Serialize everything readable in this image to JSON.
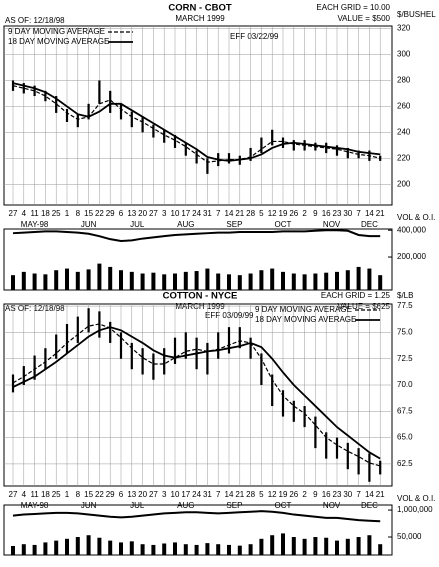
{
  "chart_data": [
    {
      "type": "ohlc",
      "title": "CORN - CBOT",
      "subtitle": "MARCH 1999",
      "as_of": "AS OF: 12/18/98",
      "grid_note": "EACH GRID = 10.00",
      "value_note": "VALUE = $500",
      "effective": "EFF 03/22/99",
      "y_label": "$/BUSHEL",
      "legend_loc": "upper left",
      "grid": true,
      "categories": [
        "27",
        "4",
        "11",
        "18",
        "25",
        "1",
        "8",
        "15",
        "22",
        "29",
        "6",
        "13",
        "20",
        "27",
        "3",
        "10",
        "17",
        "24",
        "31",
        "7",
        "14",
        "21",
        "28",
        "5",
        "12",
        "19",
        "26",
        "2",
        "9",
        "16",
        "23",
        "30",
        "7",
        "14",
        "21"
      ],
      "months": [
        "MAY-98",
        "JUN",
        "JUL",
        "AUG",
        "SEP",
        "OCT",
        "NOV",
        "DEC"
      ],
      "high": [
        280,
        278,
        276,
        272,
        268,
        258,
        254,
        262,
        280,
        272,
        262,
        256,
        252,
        246,
        242,
        238,
        232,
        226,
        220,
        224,
        224,
        222,
        228,
        236,
        242,
        236,
        234,
        234,
        232,
        232,
        230,
        228,
        226,
        226,
        222
      ],
      "low": [
        272,
        270,
        268,
        264,
        255,
        248,
        244,
        250,
        262,
        255,
        250,
        244,
        240,
        236,
        232,
        228,
        222,
        216,
        208,
        214,
        216,
        215,
        218,
        224,
        230,
        228,
        226,
        226,
        226,
        224,
        222,
        220,
        220,
        218,
        218
      ],
      "series": [
        {
          "name": "9 DAY MOVING AVERAGE",
          "style": "dashed",
          "color": "#000000",
          "values": [
            276,
            274,
            272,
            268,
            262,
            255,
            250,
            252,
            262,
            265,
            258,
            252,
            248,
            243,
            238,
            234,
            229,
            223,
            217,
            218,
            219,
            219,
            221,
            227,
            233,
            233,
            231,
            230,
            229,
            228,
            227,
            225,
            223,
            222,
            220
          ]
        },
        {
          "name": "18 DAY MOVING AVERAGE",
          "style": "solid",
          "color": "#000000",
          "values": [
            278,
            276,
            274,
            271,
            266,
            260,
            254,
            252,
            256,
            262,
            262,
            257,
            252,
            247,
            242,
            237,
            232,
            227,
            221,
            219,
            218,
            219,
            220,
            223,
            228,
            231,
            232,
            231,
            230,
            229,
            228,
            227,
            225,
            224,
            223
          ]
        }
      ],
      "ylim": [
        184,
        322
      ],
      "yticks": [
        200,
        220,
        240,
        260,
        280,
        300,
        320
      ],
      "volume_panel": {
        "label": "VOL & O.I.",
        "open_interest": [
          395000,
          396000,
          397000,
          398000,
          398000,
          397000,
          396000,
          394000,
          390000,
          385000,
          382000,
          383000,
          386000,
          388000,
          390000,
          392000,
          393000,
          394000,
          395000,
          396000,
          396000,
          397000,
          397000,
          397000,
          397000,
          398000,
          398000,
          398000,
          399000,
          400000,
          400000,
          399000,
          392000,
          390000,
          390000
        ],
        "volume": [
          90000,
          110000,
          100000,
          95000,
          120000,
          130000,
          110000,
          125000,
          160000,
          140000,
          120000,
          110000,
          100000,
          105000,
          95000,
          100000,
          110000,
          115000,
          130000,
          100000,
          95000,
          90000,
          100000,
          120000,
          130000,
          110000,
          100000,
          95000,
          100000,
          105000,
          110000,
          120000,
          140000,
          130000,
          90000
        ],
        "ylim": [
          300000,
          402000
        ],
        "yticks": [
          {
            "value": 400000,
            "label": "400,000"
          }
        ],
        "y2lim": [
          0,
          370000
        ],
        "y2ticks": [
          {
            "value": 200000,
            "label": "200,000"
          }
        ]
      }
    },
    {
      "type": "ohlc",
      "title": "COTTON - NYCE",
      "subtitle": "MARCH 1999",
      "as_of": "AS OF: 12/18/98",
      "grid_note": "EACH GRID = 1.25",
      "value_note": "VALUE = $625",
      "effective": "EFF 03/09/99",
      "y_label": "$/LB",
      "legend_loc": "upper right",
      "grid": true,
      "categories": [
        "27",
        "4",
        "11",
        "18",
        "25",
        "1",
        "8",
        "15",
        "22",
        "29",
        "6",
        "13",
        "20",
        "27",
        "3",
        "10",
        "17",
        "24",
        "31",
        "7",
        "14",
        "21",
        "28",
        "5",
        "12",
        "19",
        "26",
        "2",
        "9",
        "16",
        "23",
        "30",
        "7",
        "14",
        "21"
      ],
      "months": [
        "MAY-98",
        "JUN",
        "JUL",
        "AUG",
        "SEP",
        "OCT",
        "NOV",
        "DEC"
      ],
      "high": [
        71.0,
        71.8,
        72.8,
        73.5,
        74.8,
        75.8,
        76.5,
        77.3,
        77.0,
        76.0,
        75.0,
        74.0,
        73.5,
        73.0,
        73.5,
        74.5,
        75.0,
        74.5,
        74.0,
        75.0,
        75.5,
        75.5,
        74.5,
        73.0,
        71.0,
        69.5,
        68.5,
        68.0,
        67.0,
        65.5,
        65.0,
        64.5,
        64.0,
        63.5,
        62.8
      ],
      "low": [
        69.3,
        70.0,
        70.5,
        71.5,
        72.5,
        73.0,
        74.0,
        75.0,
        74.5,
        74.0,
        72.5,
        71.5,
        71.0,
        70.5,
        71.0,
        72.0,
        72.5,
        71.5,
        71.0,
        72.5,
        73.0,
        73.5,
        72.5,
        70.0,
        68.0,
        67.0,
        66.5,
        66.0,
        64.0,
        63.0,
        63.0,
        62.0,
        61.5,
        60.8,
        61.5
      ],
      "series": [
        {
          "name": "9 DAY MOVING AVERAGE",
          "style": "dashed",
          "color": "#000000",
          "values": [
            70.2,
            70.8,
            71.5,
            72.2,
            73.0,
            74.0,
            74.8,
            75.6,
            75.8,
            75.4,
            74.5,
            73.5,
            72.6,
            72.0,
            72.0,
            72.6,
            73.2,
            73.4,
            73.2,
            73.4,
            73.8,
            74.2,
            74.0,
            72.5,
            70.5,
            69.0,
            68.0,
            67.3,
            66.2,
            65.0,
            64.3,
            63.7,
            63.2,
            62.6,
            62.3
          ]
        },
        {
          "name": "18 DAY MOVING AVERAGE",
          "style": "solid",
          "color": "#000000",
          "values": [
            69.8,
            70.3,
            70.8,
            71.5,
            72.2,
            73.0,
            73.8,
            74.6,
            75.2,
            75.5,
            75.2,
            74.6,
            74.0,
            73.3,
            72.8,
            72.6,
            72.8,
            73.0,
            73.2,
            73.3,
            73.5,
            73.7,
            74.0,
            73.6,
            72.5,
            71.2,
            70.0,
            69.0,
            68.0,
            67.0,
            66.0,
            65.2,
            64.4,
            63.6,
            63.0
          ]
        }
      ],
      "ylim": [
        60.4,
        77.7
      ],
      "yticks": [
        62.5,
        {
          "value": 65,
          "label": "65.0"
        },
        67.5,
        {
          "value": 70,
          "label": "70.0"
        },
        72.5,
        {
          "value": 75,
          "label": "75.0"
        },
        77.5
      ],
      "volume_panel": {
        "label": "VOL & O.I.",
        "open_interest": [
          950000,
          960000,
          965000,
          970000,
          975000,
          975000,
          970000,
          960000,
          950000,
          940000,
          935000,
          940000,
          950000,
          960000,
          970000,
          975000,
          980000,
          980000,
          975000,
          970000,
          975000,
          980000,
          985000,
          990000,
          985000,
          975000,
          960000,
          950000,
          940000,
          930000,
          930000,
          920000,
          910000,
          905000,
          900000
        ],
        "volume": [
          25000,
          30000,
          28000,
          35000,
          40000,
          45000,
          50000,
          55000,
          48000,
          40000,
          35000,
          38000,
          30000,
          28000,
          32000,
          35000,
          30000,
          28000,
          33000,
          30000,
          28000,
          26000,
          30000,
          45000,
          55000,
          60000,
          50000,
          45000,
          50000,
          48000,
          40000,
          45000,
          50000,
          55000,
          30000
        ],
        "ylim": [
          600000,
          1045000
        ],
        "yticks": [
          {
            "value": 1000000,
            "label": "1,000,000"
          }
        ],
        "y2lim": [
          0,
          139000
        ],
        "y2ticks": [
          {
            "value": 50000,
            "label": "50,000"
          }
        ]
      }
    }
  ]
}
